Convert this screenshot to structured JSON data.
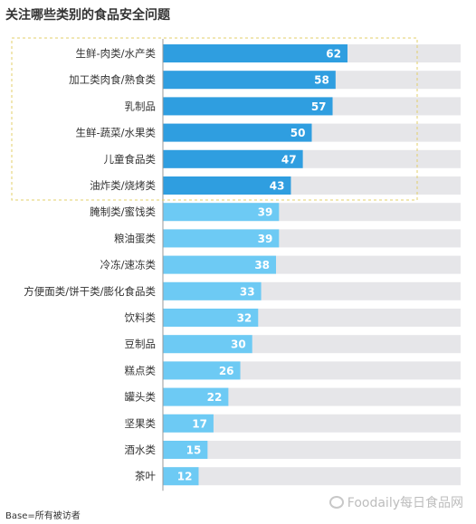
{
  "chart_data": {
    "type": "bar",
    "orientation": "horizontal",
    "title": "关注哪些类别的食品安全问题",
    "categories": [
      "生鲜-肉类/水产类",
      "加工类肉食/熟食类",
      "乳制品",
      "生鲜-蔬菜/水果类",
      "儿童食品类",
      "油炸类/烧烤类",
      "腌制类/蜜饯类",
      "粮油蛋类",
      "冷冻/速冻类",
      "方便面类/饼干类/膨化食品类",
      "饮料类",
      "豆制品",
      "糕点类",
      "罐头类",
      "坚果类",
      "酒水类",
      "茶叶"
    ],
    "values": [
      62,
      58,
      57,
      50,
      47,
      43,
      39,
      39,
      38,
      33,
      32,
      30,
      26,
      22,
      17,
      15,
      12
    ],
    "highlighted_count": 6,
    "xlim": [
      0,
      100
    ],
    "grid": false,
    "legend": "none",
    "colors": {
      "highlight": "#2f9ee0",
      "normal": "#6dcaf4",
      "track": "#e6e6e9",
      "label": "#333333",
      "value": "#ffffff",
      "box": "#e3cf6a"
    }
  },
  "footnote": "Base=所有被访者",
  "watermark": {
    "text": "Foodaily每日食品网",
    "icon": "wechat-icon"
  }
}
